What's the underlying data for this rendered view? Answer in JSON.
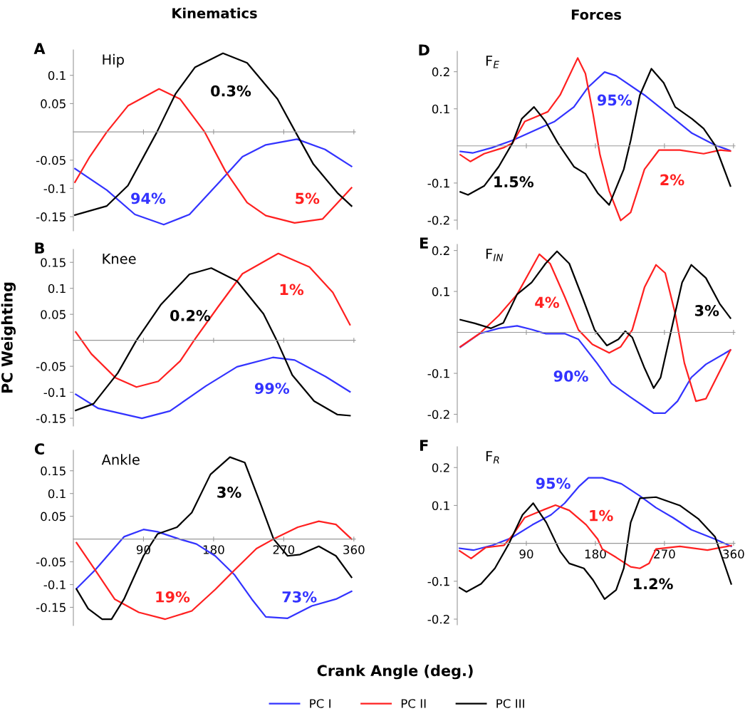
{
  "chart_data": [
    {
      "type": "line",
      "title": "Kinematics",
      "subtitle": "Hip",
      "xlim": [
        0,
        362
      ],
      "xticks": [
        90,
        180,
        270,
        360
      ],
      "ylim": [
        -0.175,
        0.145
      ],
      "yticks": [
        -0.15,
        -0.1,
        -0.05,
        0.05,
        0.1
      ],
      "tick_labels": "y",
      "grid": false,
      "legend": "bottom",
      "annotations": [
        "A",
        "94%",
        "5%",
        "0.3%"
      ],
      "series": [
        {
          "name": "PC I",
          "color": "#3333ff",
          "x": [
            2,
            43,
            79,
            116,
            149,
            186,
            217,
            247,
            287,
            323,
            357
          ],
          "values": [
            -0.065,
            -0.103,
            -0.146,
            -0.164,
            -0.146,
            -0.091,
            -0.044,
            -0.023,
            -0.013,
            -0.031,
            -0.061
          ]
        },
        {
          "name": "PC II",
          "color": "#ff2020",
          "x": [
            2,
            21,
            43,
            70,
            110,
            137,
            168,
            195,
            223,
            247,
            284,
            320,
            357
          ],
          "values": [
            -0.089,
            -0.044,
            0,
            0.046,
            0.076,
            0.058,
            0.001,
            -0.069,
            -0.125,
            -0.148,
            -0.161,
            -0.154,
            -0.099
          ]
        },
        {
          "name": "PC III",
          "color": "#000000",
          "x": [
            2,
            43,
            70,
            107,
            131,
            156,
            192,
            223,
            262,
            285,
            308,
            339,
            357
          ],
          "values": [
            -0.147,
            -0.131,
            -0.095,
            -0.001,
            0.067,
            0.114,
            0.139,
            0.122,
            0.058,
            0,
            -0.057,
            -0.108,
            -0.131
          ]
        }
      ]
    },
    {
      "type": "line",
      "subtitle": "Knee",
      "ylabel": "PC Weighting",
      "xlim": [
        0,
        362
      ],
      "xticks": [
        90,
        180,
        270,
        360
      ],
      "ylim": [
        -0.165,
        0.175
      ],
      "yticks": [
        -0.15,
        -0.1,
        -0.05,
        0.05,
        0.1,
        0.15
      ],
      "tick_labels": "y",
      "grid": false,
      "annotations": [
        "B",
        "99%",
        "1%",
        "0.2%"
      ],
      "series": [
        {
          "color": "#3333ff",
          "x": [
            3,
            32,
            88,
            124,
            170,
            210,
            256,
            284,
            324,
            355
          ],
          "values": [
            -0.104,
            -0.131,
            -0.15,
            -0.136,
            -0.088,
            -0.051,
            -0.033,
            -0.038,
            -0.07,
            -0.099
          ]
        },
        {
          "color": "#ff2020",
          "x": [
            3,
            23,
            54,
            81,
            109,
            137,
            155,
            186,
            217,
            263,
            303,
            333,
            355
          ],
          "values": [
            0.016,
            -0.026,
            -0.072,
            -0.09,
            -0.079,
            -0.04,
            0,
            0.065,
            0.128,
            0.167,
            0.141,
            0.092,
            0.03
          ]
        },
        {
          "color": "#000000",
          "x": [
            3,
            26,
            57,
            81,
            112,
            149,
            177,
            210,
            244,
            261,
            281,
            309,
            339,
            355
          ],
          "values": [
            -0.135,
            -0.122,
            -0.063,
            0,
            0.068,
            0.127,
            0.139,
            0.114,
            0.051,
            0,
            -0.067,
            -0.117,
            -0.143,
            -0.145
          ]
        }
      ]
    },
    {
      "type": "line",
      "subtitle": "Ankle",
      "xlabel": "Crank Angle (deg.)",
      "xlim": [
        0,
        362
      ],
      "xticks": [
        90,
        180,
        270,
        360
      ],
      "ylim": [
        -0.19,
        0.195
      ],
      "yticks": [
        -0.15,
        -0.1,
        -0.05,
        0.05,
        0.1,
        0.15
      ],
      "grid": false,
      "annotations": [
        "C",
        "73%",
        "19%",
        "3%"
      ],
      "series": [
        {
          "color": "#3333ff",
          "x": [
            4,
            28,
            65,
            90,
            108,
            136,
            158,
            182,
            207,
            229,
            247,
            275,
            306,
            337,
            357
          ],
          "values": [
            -0.109,
            -0.068,
            0.005,
            0.021,
            0.016,
            0,
            -0.011,
            -0.037,
            -0.079,
            -0.132,
            -0.171,
            -0.174,
            -0.147,
            -0.132,
            -0.115
          ]
        },
        {
          "color": "#ff2020",
          "x": [
            4,
            28,
            53,
            84,
            118,
            152,
            182,
            207,
            235,
            257,
            288,
            315,
            337,
            357
          ],
          "values": [
            -0.008,
            -0.068,
            -0.132,
            -0.161,
            -0.176,
            -0.158,
            -0.111,
            -0.068,
            -0.021,
            0,
            0.026,
            0.039,
            0.032,
            0
          ]
        },
        {
          "color": "#000000",
          "x": [
            4,
            19,
            37,
            49,
            65,
            90,
            108,
            133,
            152,
            176,
            201,
            220,
            241,
            257,
            275,
            291,
            315,
            337,
            357
          ],
          "values": [
            -0.11,
            -0.153,
            -0.176,
            -0.176,
            -0.132,
            -0.037,
            0.011,
            0.026,
            0.058,
            0.142,
            0.18,
            0.168,
            0.074,
            0,
            -0.037,
            -0.034,
            -0.016,
            -0.037,
            -0.084
          ]
        }
      ]
    },
    {
      "type": "line",
      "title": "Forces",
      "subtitle": "F$_{E}$",
      "xlim": [
        0,
        362
      ],
      "xticks": [
        90,
        180,
        270,
        360
      ],
      "ylim": [
        -0.225,
        0.255
      ],
      "yticks": [
        -0.2,
        -0.1,
        0.1,
        0.2
      ],
      "tick_labels": "y",
      "grid": false,
      "annotations": [
        "D",
        "95%",
        "2%",
        "1.5%"
      ],
      "series": [
        {
          "color": "#3333ff",
          "x": [
            4,
            20,
            45,
            72,
            103,
            127,
            152,
            170,
            192,
            207,
            244,
            275,
            306,
            336,
            355
          ],
          "values": [
            -0.015,
            -0.019,
            -0.005,
            0.015,
            0.044,
            0.066,
            0.105,
            0.157,
            0.199,
            0.189,
            0.137,
            0.086,
            0.034,
            0.002,
            -0.012
          ]
        },
        {
          "color": "#ff2020",
          "x": [
            4,
            17,
            35,
            60,
            72,
            88,
            103,
            118,
            134,
            157,
            167,
            177,
            186,
            198,
            213,
            226,
            244,
            263,
            290,
            321,
            343,
            356
          ],
          "values": [
            -0.024,
            -0.042,
            -0.021,
            -0.005,
            0.008,
            0.066,
            0.079,
            0.092,
            0.137,
            0.237,
            0.195,
            0.086,
            -0.024,
            -0.121,
            -0.201,
            -0.179,
            -0.063,
            -0.011,
            -0.011,
            -0.021,
            -0.011,
            -0.014
          ]
        },
        {
          "color": "#000000",
          "x": [
            4,
            14,
            35,
            54,
            72,
            84,
            100,
            115,
            131,
            152,
            167,
            183,
            198,
            217,
            226,
            238,
            253,
            269,
            284,
            306,
            321,
            336,
            356
          ],
          "values": [
            -0.124,
            -0.132,
            -0.108,
            -0.056,
            0.008,
            0.073,
            0.105,
            0.066,
            0.008,
            -0.056,
            -0.075,
            -0.127,
            -0.159,
            -0.063,
            0.015,
            0.137,
            0.208,
            0.17,
            0.105,
            0.073,
            0.047,
            0.002,
            -0.108
          ]
        }
      ]
    },
    {
      "type": "line",
      "subtitle": "F$_{IN}$",
      "xlim": [
        0,
        362
      ],
      "xticks": [
        90,
        180,
        270,
        360
      ],
      "ylim": [
        -0.22,
        0.215
      ],
      "yticks": [
        -0.2,
        -0.1,
        0.1,
        0.2
      ],
      "tick_labels": "y",
      "grid": false,
      "annotations": [
        "E",
        "90%",
        "4%",
        "3%"
      ],
      "series": [
        {
          "color": "#3333ff",
          "x": [
            4,
            29,
            54,
            78,
            97,
            115,
            140,
            158,
            182,
            201,
            225,
            256,
            271,
            287,
            305,
            324,
            356
          ],
          "values": [
            -0.036,
            -0.003,
            0.01,
            0.016,
            0.007,
            -0.003,
            -0.003,
            -0.017,
            -0.075,
            -0.125,
            -0.157,
            -0.197,
            -0.197,
            -0.168,
            -0.11,
            -0.078,
            -0.043
          ]
        },
        {
          "color": "#ff2020",
          "x": [
            4,
            29,
            54,
            78,
            97,
            107,
            121,
            140,
            158,
            176,
            198,
            213,
            228,
            244,
            259,
            271,
            284,
            296,
            311,
            324,
            356
          ],
          "values": [
            -0.035,
            -0.003,
            0.041,
            0.093,
            0.157,
            0.191,
            0.168,
            0.087,
            0.006,
            -0.029,
            -0.05,
            -0.035,
            0.006,
            0.11,
            0.165,
            0.145,
            0.046,
            -0.075,
            -0.168,
            -0.162,
            -0.043
          ]
        },
        {
          "color": "#000000",
          "x": [
            4,
            23,
            44,
            60,
            78,
            97,
            115,
            130,
            146,
            164,
            179,
            195,
            210,
            219,
            228,
            244,
            256,
            265,
            281,
            293,
            305,
            324,
            342,
            356
          ],
          "values": [
            0.031,
            0.022,
            0.01,
            0.023,
            0.093,
            0.122,
            0.168,
            0.198,
            0.168,
            0.081,
            0.006,
            -0.032,
            -0.017,
            0.003,
            -0.012,
            -0.087,
            -0.136,
            -0.11,
            0.023,
            0.122,
            0.165,
            0.133,
            0.07,
            0.035
          ]
        }
      ]
    },
    {
      "type": "line",
      "subtitle": "F$_{R}$",
      "xlim": [
        0,
        362
      ],
      "xticks": [
        90,
        180,
        270,
        360
      ],
      "ylim": [
        -0.215,
        0.255
      ],
      "yticks": [
        -0.2,
        -0.1,
        0.1,
        0.2
      ],
      "grid": false,
      "annotations": [
        "F",
        "95%",
        "1%",
        "1.2%"
      ],
      "series": [
        {
          "color": "#3333ff",
          "x": [
            3,
            21,
            46,
            70,
            98,
            122,
            140,
            159,
            171,
            189,
            214,
            238,
            259,
            281,
            305,
            336,
            357
          ],
          "values": [
            -0.013,
            -0.018,
            -0.005,
            0.014,
            0.049,
            0.075,
            0.106,
            0.151,
            0.173,
            0.173,
            0.157,
            0.125,
            0.094,
            0.068,
            0.036,
            0.011,
            -0.008
          ]
        },
        {
          "color": "#ff2020",
          "x": [
            3,
            18,
            37,
            61,
            73,
            88,
            107,
            128,
            146,
            168,
            183,
            189,
            207,
            226,
            238,
            250,
            259,
            290,
            326,
            357
          ],
          "values": [
            -0.02,
            -0.04,
            -0.011,
            -0.005,
            0.024,
            0.068,
            0.084,
            0.101,
            0.087,
            0.049,
            0.011,
            -0.015,
            -0.037,
            -0.062,
            -0.066,
            -0.053,
            -0.015,
            -0.008,
            -0.018,
            -0.006
          ]
        },
        {
          "color": "#000000",
          "x": [
            3,
            12,
            31,
            49,
            67,
            85,
            99,
            116,
            134,
            146,
            165,
            177,
            192,
            207,
            217,
            226,
            238,
            259,
            290,
            314,
            336,
            357
          ],
          "values": [
            -0.117,
            -0.128,
            -0.107,
            -0.066,
            -0.002,
            0.075,
            0.106,
            0.055,
            -0.021,
            -0.053,
            -0.066,
            -0.097,
            -0.147,
            -0.123,
            -0.066,
            0.055,
            0.119,
            0.122,
            0.1,
            0.065,
            0.017,
            -0.107
          ]
        }
      ]
    }
  ]
}
